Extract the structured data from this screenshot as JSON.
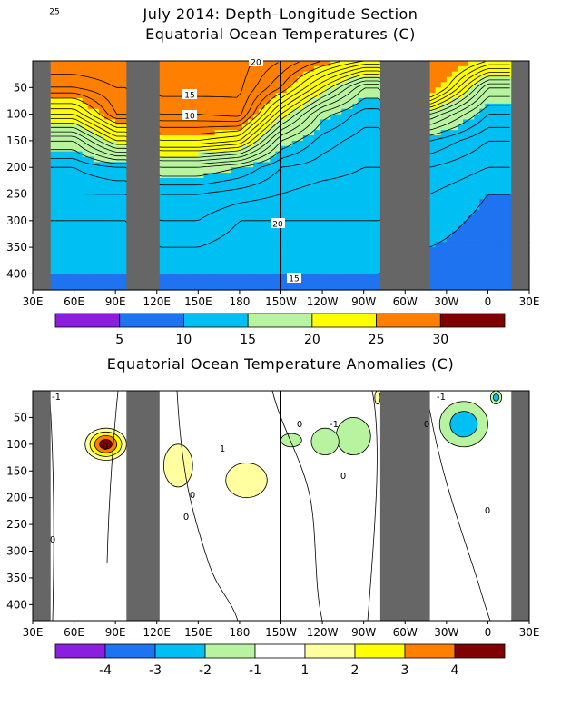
{
  "titles": {
    "main_line1": "July 2014: Depth–Longitude Section",
    "main_line2": "Equatorial Ocean Temperatures (C)",
    "anomaly": "Equatorial Ocean Temperature Anomalies (C)"
  },
  "chart_data": [
    {
      "type": "heatmap",
      "title": "July 2014: Depth–Longitude Section / Equatorial Ocean Temperatures (C)",
      "x_tick_labels": [
        "30E",
        "60E",
        "90E",
        "120E",
        "150E",
        "180",
        "150W",
        "120W",
        "90W",
        "60W",
        "30W",
        "0",
        "30E"
      ],
      "y_tick_labels": [
        "50",
        "100",
        "150",
        "200",
        "250",
        "300",
        "350",
        "400"
      ],
      "xlim_degrees_east": [
        30,
        390
      ],
      "ylim_depth": [
        0,
        430
      ],
      "y_reversed": true,
      "land_masks_degrees_east": [
        [
          30,
          43
        ],
        [
          98,
          122
        ],
        [
          282,
          318
        ],
        [
          377,
          390
        ]
      ],
      "colorbar": {
        "ticks": [
          "5",
          "10",
          "15",
          "20",
          "25",
          "30"
        ],
        "colors": [
          "#8a1fe0",
          "#1e73f0",
          "#00bff2",
          "#b8f4a0",
          "#ffff00",
          "#ff7f00",
          "#7f0000"
        ],
        "boundaries": [
          0,
          5,
          10,
          15,
          20,
          25,
          30,
          35
        ]
      },
      "contour_labels": [
        "25",
        "20",
        "15",
        "10",
        "20",
        "15"
      ],
      "shading_by_depth": {
        "depths": [
          0,
          50,
          100,
          150,
          200,
          250,
          300,
          350,
          400,
          430
        ],
        "western_indian_60E": [
          29,
          27,
          22,
          16,
          13,
          12,
          11,
          10.5,
          10,
          9.8
        ],
        "eastern_indian_90E": [
          29,
          28,
          27,
          21,
          14,
          12,
          11,
          10.5,
          10,
          9.8
        ],
        "west_pacific_150E": [
          29.5,
          29.5,
          28,
          24,
          16,
          13,
          12,
          11,
          10,
          9.5
        ],
        "dateline_180": [
          29.5,
          29.3,
          28.5,
          23,
          15,
          12.5,
          11,
          10.5,
          10,
          9.6
        ],
        "central_pacific_150W": [
          28,
          26,
          21,
          16,
          13,
          12,
          11,
          10.5,
          10,
          9.8
        ],
        "east_pacific_120W": [
          26,
          21,
          15.5,
          13.5,
          12.5,
          11.5,
          11,
          10.5,
          10,
          9.8
        ],
        "east_pacific_90W": [
          24,
          16,
          13.5,
          12.5,
          12,
          11.5,
          11,
          10.5,
          10,
          9.8
        ],
        "atlantic_45W": [
          28,
          27,
          19,
          14,
          12,
          11,
          10.5,
          10,
          9.5,
          9
        ],
        "atlantic_0": [
          24,
          17,
          14,
          12,
          11,
          10,
          9.7,
          9.5,
          9,
          8.8
        ]
      }
    },
    {
      "type": "heatmap",
      "title": "Equatorial Ocean Temperature Anomalies (C)",
      "x_tick_labels": [
        "30E",
        "60E",
        "90E",
        "120E",
        "150E",
        "180",
        "150W",
        "120W",
        "90W",
        "60W",
        "30W",
        "0",
        "30E"
      ],
      "y_tick_labels": [
        "50",
        "100",
        "150",
        "200",
        "250",
        "300",
        "350",
        "400"
      ],
      "xlim_degrees_east": [
        30,
        390
      ],
      "ylim_depth": [
        0,
        430
      ],
      "y_reversed": true,
      "land_masks_degrees_east": [
        [
          30,
          43
        ],
        [
          98,
          122
        ],
        [
          282,
          318
        ],
        [
          377,
          390
        ]
      ],
      "colorbar": {
        "ticks": [
          "-4",
          "-3",
          "-2",
          "-1",
          "1",
          "2",
          "3",
          "4"
        ],
        "colors": [
          "#8a1fe0",
          "#1e73f0",
          "#00bff2",
          "#b8f4a0",
          "#ffffff",
          "#ffff9f",
          "#ffff00",
          "#ff7f00",
          "#7f0000"
        ],
        "boundaries": [
          -5,
          -4,
          -3,
          -2,
          -1,
          1,
          2,
          3,
          4,
          5
        ]
      },
      "contour_labels": [
        "-1",
        "1",
        "0",
        "0",
        "0",
        "-1",
        "0",
        "0",
        "0",
        "0",
        "-1",
        "0"
      ],
      "anomaly_features": [
        {
          "lon_range": [
            68,
            98
          ],
          "depth_range": [
            70,
            130
          ],
          "peak": 4.3
        },
        {
          "lon_range": [
            125,
            146
          ],
          "depth_range": [
            100,
            180
          ],
          "peak": 1.4
        },
        {
          "lon_range": [
            170,
            200
          ],
          "depth_range": [
            135,
            200
          ],
          "peak": 1.6
        },
        {
          "lon_range": [
            250,
            275
          ],
          "depth_range": [
            50,
            120
          ],
          "peak": -1.3
        },
        {
          "lon_range": [
            232,
            252
          ],
          "depth_range": [
            70,
            120
          ],
          "peak": -1.2
        },
        {
          "lon_range": [
            210,
            225
          ],
          "depth_range": [
            80,
            105
          ],
          "peak": -1.1
        },
        {
          "lon_range": [
            325,
            360
          ],
          "depth_range": [
            20,
            105
          ],
          "peak": -2.3
        },
        {
          "lon_range": [
            362,
            370
          ],
          "depth_range": [
            0,
            25
          ],
          "peak": -2.1
        },
        {
          "lon_range": [
            278,
            282
          ],
          "depth_range": [
            0,
            25
          ],
          "peak": 1.4
        }
      ]
    }
  ]
}
